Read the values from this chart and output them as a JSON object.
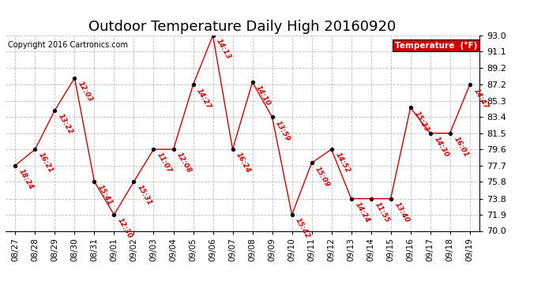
{
  "title": "Outdoor Temperature Daily High 20160920",
  "copyright": "Copyright 2016 Cartronics.com",
  "legend_label": "Temperature  (°F)",
  "x_labels": [
    "08/27",
    "08/28",
    "08/29",
    "08/30",
    "08/31",
    "09/01",
    "09/02",
    "09/03",
    "09/04",
    "09/05",
    "09/06",
    "09/07",
    "09/08",
    "09/09",
    "09/10",
    "09/11",
    "09/12",
    "09/13",
    "09/14",
    "09/15",
    "09/16",
    "09/17",
    "09/18",
    "09/19"
  ],
  "temperatures": [
    77.7,
    79.6,
    84.2,
    88.0,
    75.8,
    71.9,
    75.8,
    79.6,
    79.6,
    87.2,
    93.0,
    79.6,
    87.5,
    83.4,
    71.9,
    78.0,
    79.6,
    73.8,
    73.8,
    73.8,
    84.5,
    81.5,
    81.5,
    87.2
  ],
  "time_labels": [
    "18:24",
    "16:21",
    "13:22",
    "12:03",
    "15:41",
    "12:30",
    "15:31",
    "11:07",
    "12:08",
    "14:27",
    "14:13",
    "16:24",
    "14:10",
    "13:59",
    "15:42",
    "15:09",
    "14:52",
    "14:24",
    "11:55",
    "13:40",
    "15:23",
    "14:30",
    "16:01",
    "14:47"
  ],
  "ylim": [
    70.0,
    93.0
  ],
  "yticks": [
    70.0,
    71.9,
    73.8,
    75.8,
    77.7,
    79.6,
    81.5,
    83.4,
    85.3,
    87.2,
    89.2,
    91.1,
    93.0
  ],
  "line_color": "#cc0000",
  "marker_color": "#000000",
  "bg_color": "#ffffff",
  "grid_color": "#bbbbbb",
  "title_fontsize": 13,
  "legend_bg": "#cc0000",
  "legend_fg": "#ffffff"
}
